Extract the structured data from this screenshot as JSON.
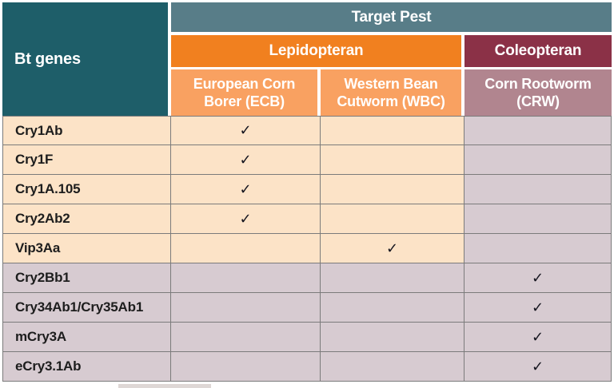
{
  "header": {
    "corner": "Bt genes",
    "target_pest": "Target Pest",
    "groups": {
      "lepidopteran": "Lepidopteran",
      "coleopteran": "Coleopteran"
    },
    "columns": {
      "ecb": "European Corn Borer (ECB)",
      "wbc": "Western Bean Cutworm (WBC)",
      "crw": "Corn Rootworm (CRW)"
    }
  },
  "check_glyph": "✓",
  "rows": [
    {
      "gene": "Cry1Ab",
      "ecb": "✓",
      "wbc": "",
      "crw": ""
    },
    {
      "gene": "Cry1F",
      "ecb": "✓",
      "wbc": "",
      "crw": ""
    },
    {
      "gene": "Cry1A.105",
      "ecb": "✓",
      "wbc": "",
      "crw": ""
    },
    {
      "gene": "Cry2Ab2",
      "ecb": "✓",
      "wbc": "",
      "crw": ""
    },
    {
      "gene": "Vip3Aa",
      "ecb": "",
      "wbc": "✓",
      "crw": ""
    },
    {
      "gene": "Cry2Bb1",
      "ecb": "",
      "wbc": "",
      "crw": "✓"
    },
    {
      "gene": "Cry34Ab1/Cry35Ab1",
      "ecb": "",
      "wbc": "",
      "crw": "✓"
    },
    {
      "gene": "mCry3A",
      "ecb": "",
      "wbc": "",
      "crw": "✓"
    },
    {
      "gene": "eCry3.1Ab",
      "ecb": "",
      "wbc": "",
      "crw": "✓"
    }
  ],
  "colors": {
    "teal_header": "#1e5e69",
    "slate_header": "#587d88",
    "lepidopteran_orange": "#f1801f",
    "subheader_light_orange": "#f9a161",
    "coleopteran_maroon": "#8b3147",
    "crw_mauve_header": "#b1858f",
    "lepidopteran_row_peach": "#fce3c7",
    "coleopteran_row_mauve": "#d7cbd1",
    "grid_border_gray": "#7b7b7b",
    "header_text": "#ffffff",
    "body_text": "#1d1d1d"
  }
}
